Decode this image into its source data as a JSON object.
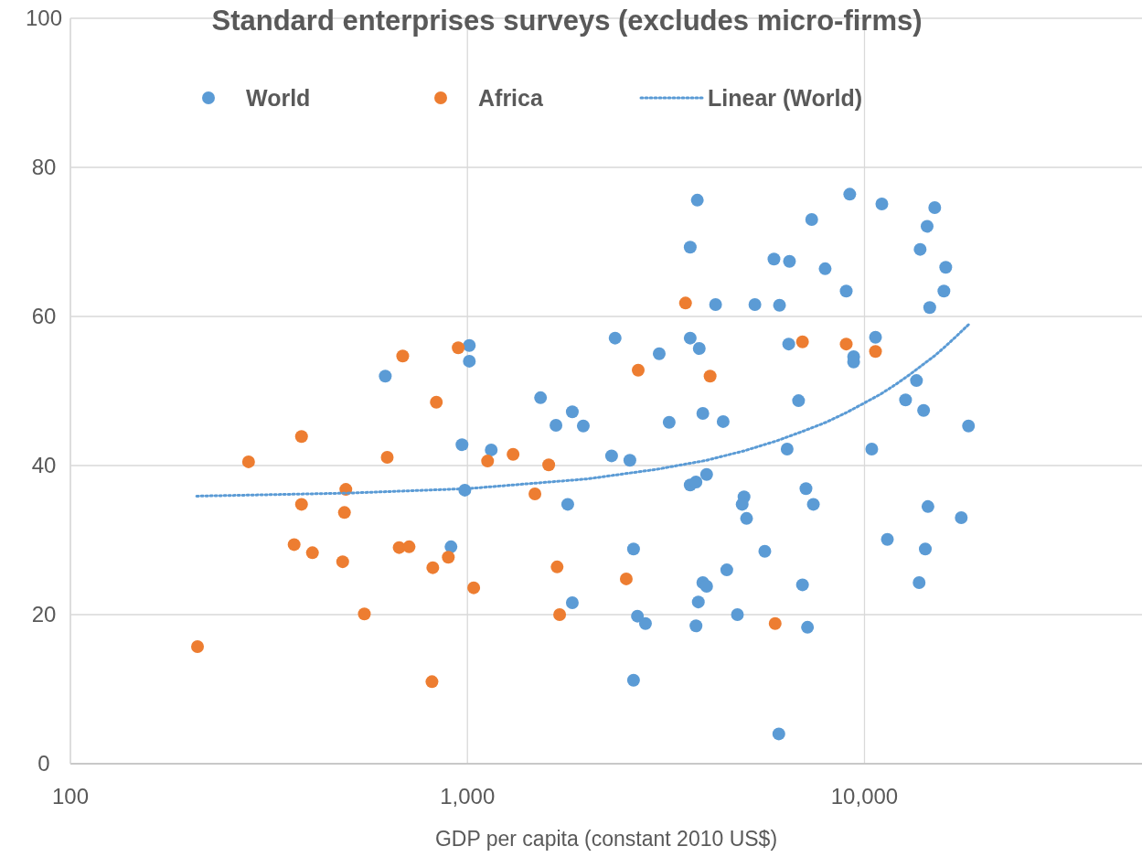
{
  "chart_data": {
    "type": "scatter",
    "title": "Standard enterprises surveys (excludes micro-firms)",
    "xlabel": "GDP per capita (constant 2010 US$)",
    "log": "x",
    "xlim": [
      100,
      50000
    ],
    "xticks": [
      {
        "value": 100,
        "label": "100"
      },
      {
        "value": 1000,
        "label": "1,000"
      },
      {
        "value": 10000,
        "label": "10,000"
      }
    ],
    "ylim": [
      0,
      100
    ],
    "yticks": [
      0,
      20,
      40,
      60,
      80,
      100
    ],
    "grid": true,
    "legend": "top",
    "marker": "circle",
    "series": [
      {
        "name": "World",
        "color": "#5b9bd5",
        "x": [
          621,
          909,
          969,
          985,
          1011,
          1011,
          1148,
          1528,
          1671,
          1837,
          1789,
          1837,
          1958,
          2307,
          2355,
          2565,
          2620,
          2680,
          2808,
          2620,
          3041,
          3222,
          3640,
          3640,
          3764,
          3640,
          3793,
          3836,
          4217,
          3916,
          4003,
          3916,
          4003,
          3815,
          3764,
          4406,
          4500,
          4786,
          4973,
          4920,
          5047,
          5297,
          5610,
          5916,
          6109,
          6085,
          6445,
          6386,
          6473,
          6823,
          7122,
          6980,
          7186,
          7363,
          7434,
          7960,
          8995,
          9181,
          9390,
          9390,
          10660,
          10430,
          11060,
          11420,
          12690,
          13520,
          13810,
          13730,
          14090,
          14230,
          14380,
          14450,
          14600,
          15030,
          15850,
          16020,
          17530,
          18280
        ],
        "values": [
          52.0,
          29.1,
          42.8,
          36.7,
          56.1,
          54.0,
          42.1,
          49.1,
          45.4,
          47.2,
          34.8,
          21.6,
          45.3,
          41.3,
          57.1,
          40.7,
          28.8,
          19.8,
          18.8,
          11.2,
          55.0,
          45.8,
          57.1,
          37.4,
          37.8,
          69.3,
          75.6,
          55.7,
          61.6,
          47.0,
          38.8,
          24.3,
          23.8,
          21.7,
          18.5,
          45.9,
          26.0,
          20.0,
          35.8,
          34.8,
          32.9,
          61.6,
          28.5,
          67.7,
          61.5,
          4.0,
          56.3,
          42.2,
          67.4,
          48.7,
          36.9,
          24.0,
          18.3,
          73.0,
          34.8,
          66.4,
          63.4,
          76.4,
          54.6,
          53.9,
          57.2,
          42.2,
          75.1,
          30.1,
          48.8,
          51.4,
          69.0,
          24.3,
          47.4,
          28.8,
          72.1,
          34.5,
          61.2,
          74.6,
          63.4,
          66.6,
          33.0,
          45.3
        ]
      },
      {
        "name": "Africa",
        "color": "#ed7d31",
        "x": [
          209,
          281,
          382,
          382,
          366,
          407,
          494,
          490,
          485,
          550,
          628,
          687,
          673,
          713,
          835,
          818,
          814,
          895,
          948,
          1037,
          1124,
          1303,
          1479,
          1602,
          1682,
          1707,
          2512,
          2692,
          3542,
          4085,
          6980,
          5957,
          8995,
          10660
        ],
        "values": [
          15.7,
          40.5,
          43.9,
          34.8,
          29.4,
          28.3,
          36.8,
          33.7,
          27.1,
          20.1,
          41.1,
          54.7,
          29.0,
          29.1,
          48.5,
          26.3,
          11.0,
          27.7,
          55.8,
          23.6,
          40.6,
          41.5,
          36.2,
          40.1,
          26.4,
          20.0,
          24.8,
          52.8,
          61.8,
          52.0,
          56.6,
          18.8,
          56.3,
          55.3
        ]
      },
      {
        "name": "Linear (World)",
        "type": "line",
        "line_style": "dotted",
        "marker": "none",
        "color": "#5b9bd5",
        "x": [
          208,
          500,
          1000,
          2000,
          3000,
          4000,
          5000,
          6000,
          7000,
          8000,
          9000,
          10000,
          11000,
          12000,
          13000,
          14000,
          15000,
          16000,
          17000,
          18280
        ],
        "values": [
          35.9,
          36.3,
          36.9,
          38.2,
          39.5,
          40.7,
          42.0,
          43.3,
          44.6,
          45.8,
          47.1,
          48.4,
          49.6,
          50.9,
          52.2,
          53.5,
          54.7,
          56.0,
          57.3,
          58.9
        ]
      }
    ]
  }
}
